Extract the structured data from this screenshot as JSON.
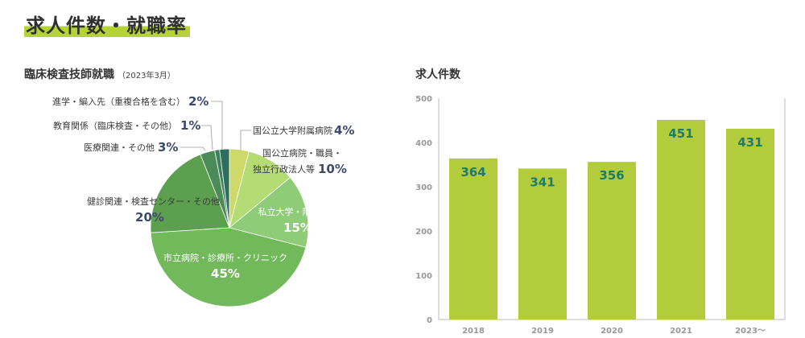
{
  "page": {
    "title": "求人件数・就職率"
  },
  "pie": {
    "title": "臨床検査技師就職",
    "note": "（2023年3月）",
    "labels": {
      "kokko_univ": "国公立大学附属病院",
      "kokko_byoin_line1": "国公立病院・職員・",
      "kokko_byoin_line2": "独立行政法人等",
      "shiritsu_univ": "私立大学・附属病院",
      "shiritsu_byoin": "市立病院・診療所・クリニック",
      "kenshin": "健診関連・検査センター・その他",
      "iryo": "医療関連・その他",
      "kyoiku": "教育関係（臨床検査・その他）",
      "shingaku": "進学・編入先（重複合格を含む）"
    },
    "pcts": {
      "kokko_univ": "4%",
      "kokko_byoin": "10%",
      "shiritsu_univ": "15%",
      "shiritsu_byoin": "45%",
      "kenshin": "20%",
      "iryo": "3%",
      "kyoiku": "1%",
      "shingaku": "2%"
    }
  },
  "bar": {
    "title": "求人件数",
    "ticks": [
      "0",
      "100",
      "200",
      "300",
      "400",
      "500"
    ],
    "value_labels": [
      "364",
      "341",
      "356",
      "451",
      "431"
    ],
    "category_labels": [
      "2018",
      "2019",
      "2020",
      "2021",
      "2023〜"
    ]
  },
  "chart_data": [
    {
      "type": "pie",
      "title": "臨床検査技師就職",
      "subtitle": "（2023年3月）",
      "slices": [
        {
          "label": "国公立大学附属病院",
          "value": 4,
          "color": "#cfd96a"
        },
        {
          "label": "国公立病院・職員・独立行政法人等",
          "value": 10,
          "color": "#b3dc74"
        },
        {
          "label": "私立大学・附属病院",
          "value": 15,
          "color": "#8fcc78"
        },
        {
          "label": "市立病院・診療所・クリニック",
          "value": 45,
          "color": "#72b95c"
        },
        {
          "label": "健診関連・検査センター・その他",
          "value": 20,
          "color": "#5ca04f"
        },
        {
          "label": "医療関連・その他",
          "value": 3,
          "color": "#4a8b58"
        },
        {
          "label": "教育関係（臨床検査・その他）",
          "value": 1,
          "color": "#3d8060"
        },
        {
          "label": "進学・編入先（重複合格を含む）",
          "value": 2,
          "color": "#2e6e5c"
        }
      ]
    },
    {
      "type": "bar",
      "title": "求人件数",
      "categories": [
        "2018",
        "2019",
        "2020",
        "2021",
        "2023〜"
      ],
      "values": [
        364,
        341,
        356,
        451,
        431
      ],
      "ylim": [
        0,
        500
      ],
      "yticks": [
        0,
        100,
        200,
        300,
        400,
        500
      ],
      "bar_color": "#b3cc3c",
      "label_color": "#1f7a6a",
      "grid": false
    }
  ]
}
